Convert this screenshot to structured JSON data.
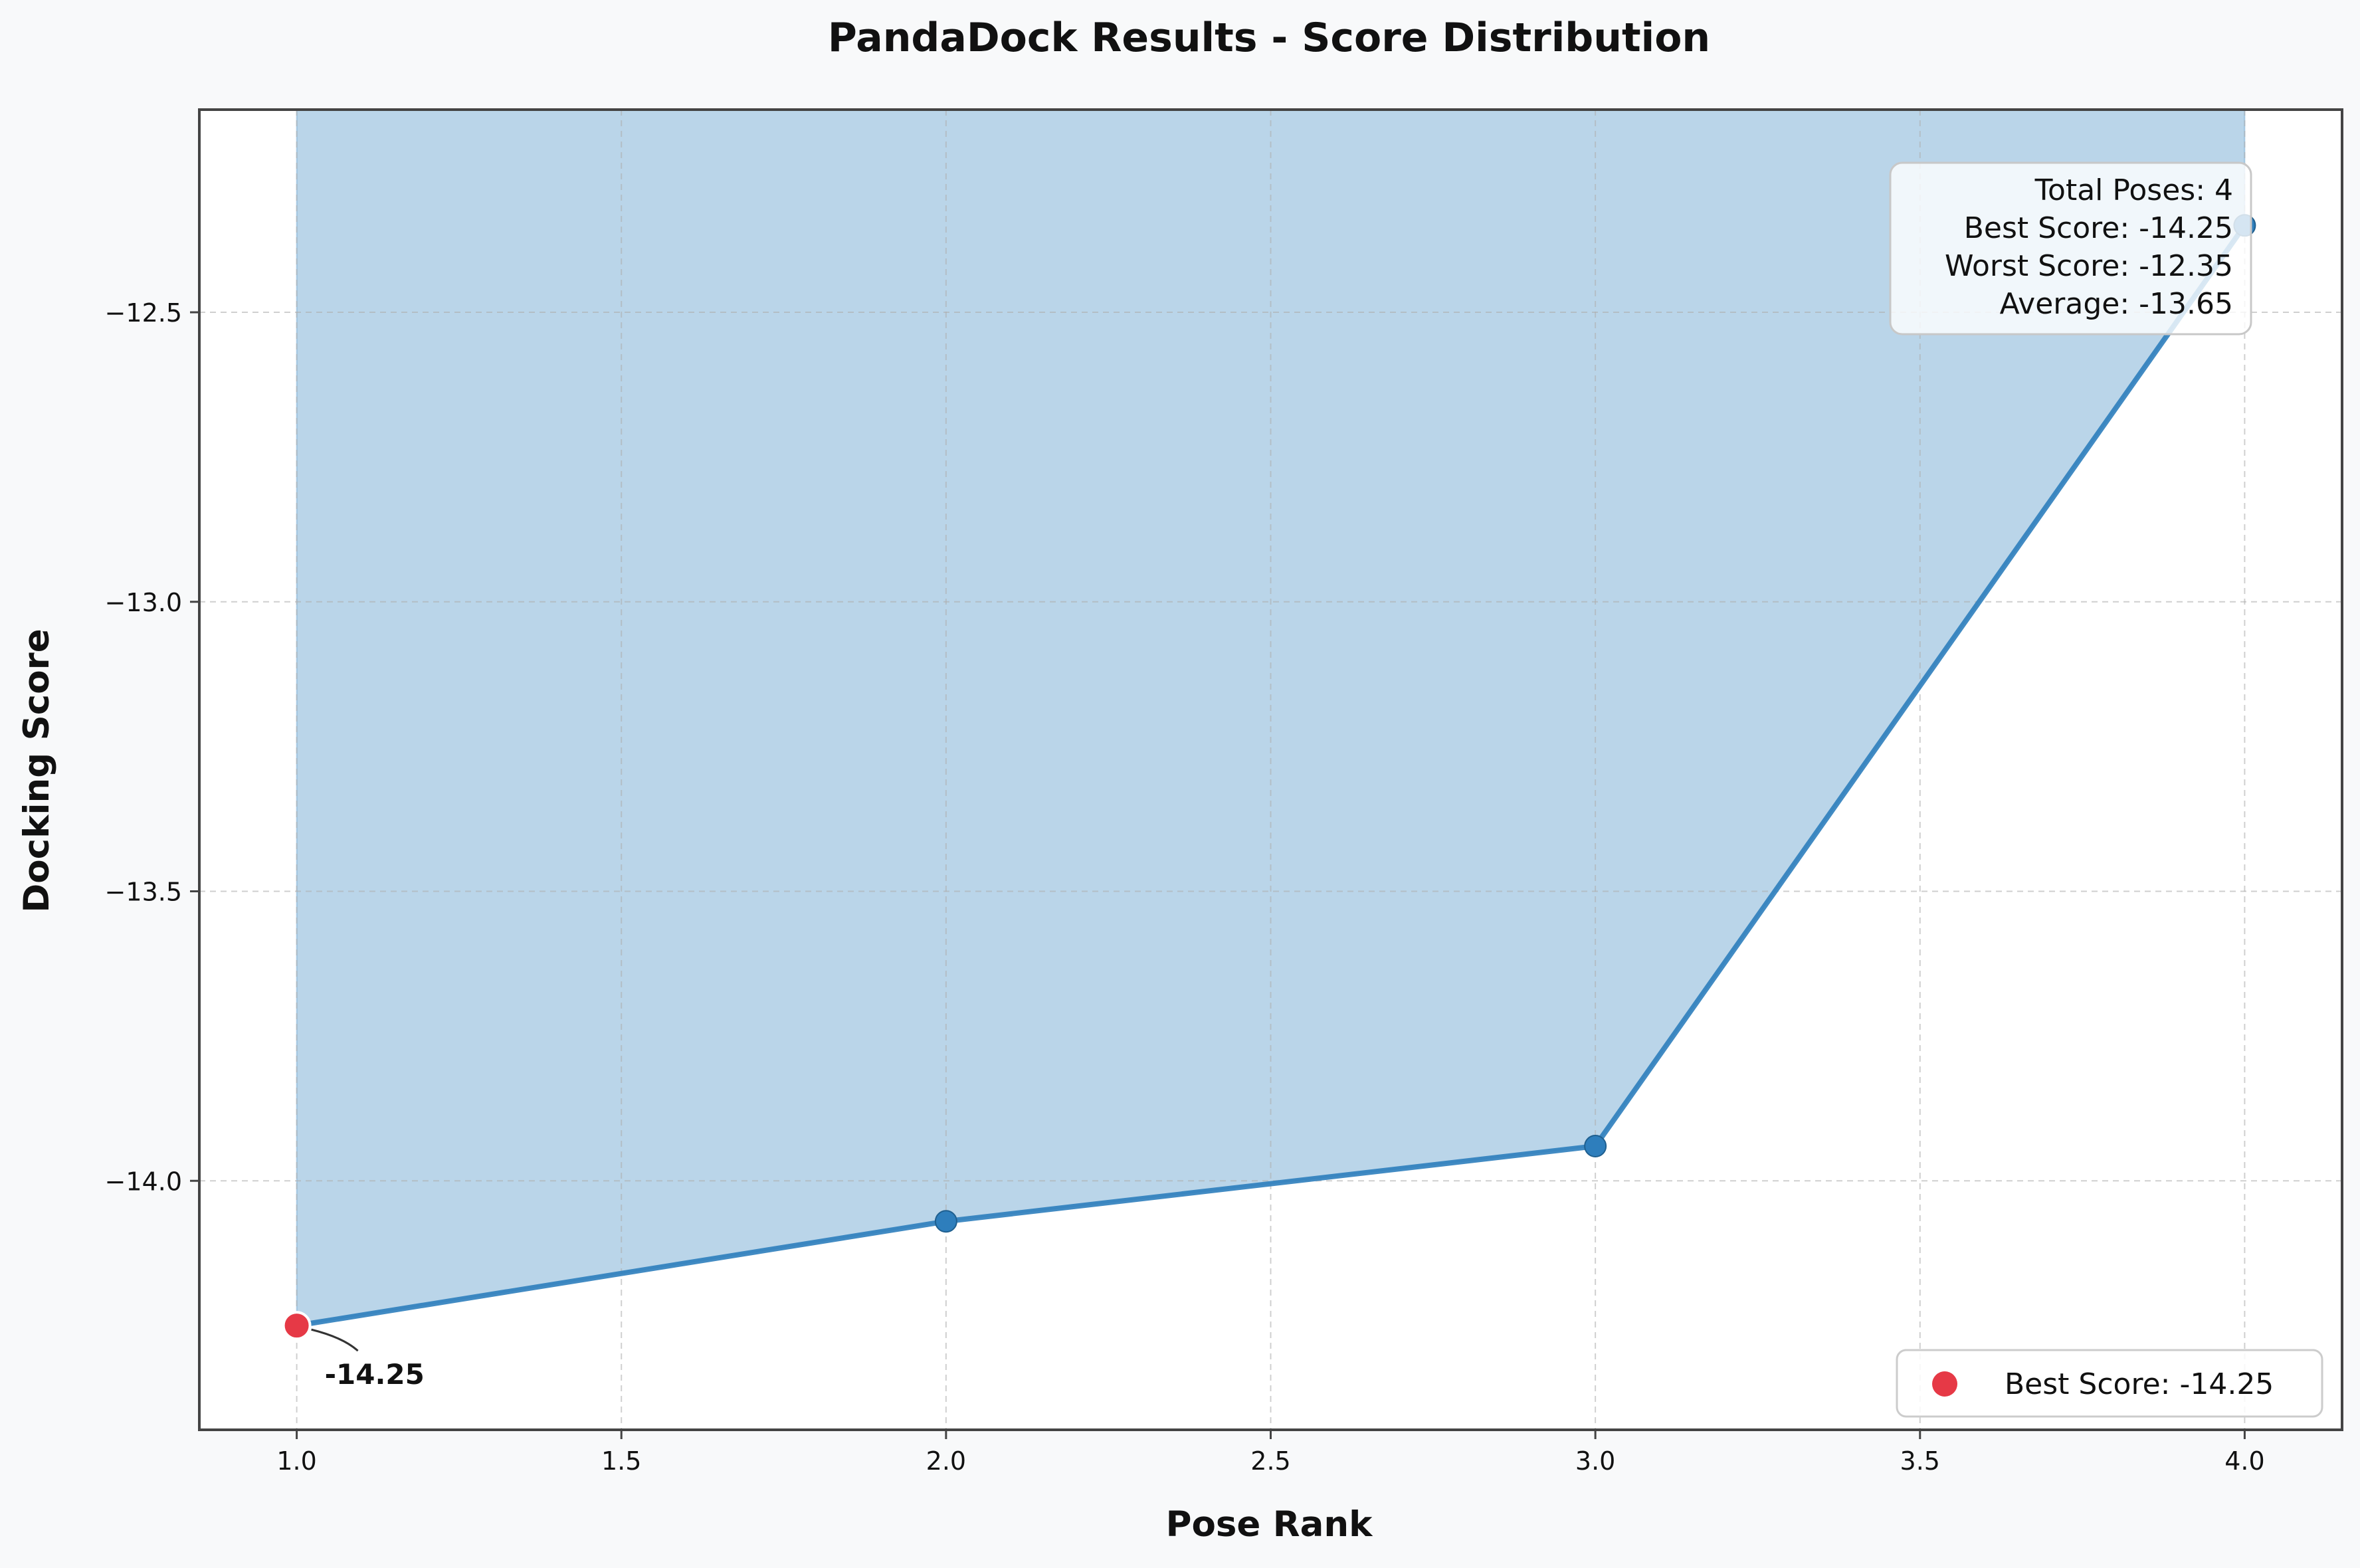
{
  "chart_data": {
    "type": "line",
    "title": "PandaDock Results - Score Distribution",
    "xlabel": "Pose Rank",
    "ylabel": "Docking Score",
    "xlim": [
      0.85,
      4.15
    ],
    "ylim": [
      -14.43,
      -12.15
    ],
    "x_ticks": [
      1.0,
      1.5,
      2.0,
      2.5,
      3.0,
      3.5,
      4.0
    ],
    "x_tick_labels": [
      "1.0",
      "1.5",
      "2.0",
      "2.5",
      "3.0",
      "3.5",
      "4.0"
    ],
    "y_ticks": [
      -12.5,
      -13.0,
      -13.5,
      -14.0
    ],
    "y_tick_labels": [
      "−12.5",
      "−13.0",
      "−13.5",
      "−14.0"
    ],
    "grid": true,
    "fill": "area above line shaded",
    "series": [
      {
        "x": [
          1,
          2,
          3,
          4
        ],
        "values": [
          -14.25,
          -14.07,
          -13.94,
          -12.35
        ],
        "color": "#2e7ebc"
      }
    ],
    "best_point": {
      "x": 1,
      "y": -14.25,
      "color": "#e63946",
      "annotation": "-14.25"
    },
    "legend": {
      "position": "lower-right",
      "entries": [
        {
          "label": "Best Score: -14.25",
          "color": "#e63946"
        }
      ]
    },
    "stats_box": {
      "position": "top-right",
      "lines": [
        "Total Poses: 4",
        "Best Score: -14.25",
        "Worst Score: -12.35",
        "Average: -13.65"
      ]
    }
  }
}
